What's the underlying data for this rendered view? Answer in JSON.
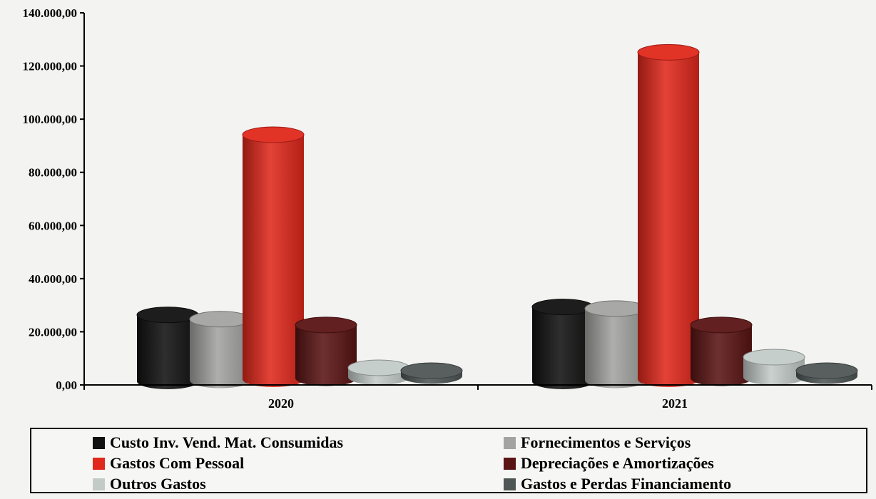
{
  "chart_data": {
    "type": "bar",
    "categories": [
      "2020",
      "2021"
    ],
    "series": [
      {
        "name": "Custo Inv. Vend. Mat. Consumidas",
        "color": "#111111",
        "values": [
          25000,
          28000
        ]
      },
      {
        "name": "Fornecimentos e Serviços",
        "color": "#a3a3a1",
        "values": [
          23000,
          27000
        ]
      },
      {
        "name": "Gastos Com Pessoal",
        "color": "#e0281c",
        "values": [
          92000,
          123000
        ]
      },
      {
        "name": "Depreciações e Amortizações",
        "color": "#5a1414",
        "values": [
          20000,
          20000
        ]
      },
      {
        "name": "Outros Gastos",
        "color": "#c3cbc8",
        "values": [
          3500,
          7500
        ]
      },
      {
        "name": "Gastos e Perdas  Financiamento",
        "color": "#4f5756",
        "values": [
          2000,
          2000
        ]
      }
    ],
    "y_ticks": [
      "0,00",
      "20.000,00",
      "40.000,00",
      "60.000,00",
      "80.000,00",
      "100.000,00",
      "120.000,00",
      "140.000,00"
    ],
    "ylim": [
      0,
      140000
    ],
    "grid": false,
    "legend_position": "bottom"
  }
}
